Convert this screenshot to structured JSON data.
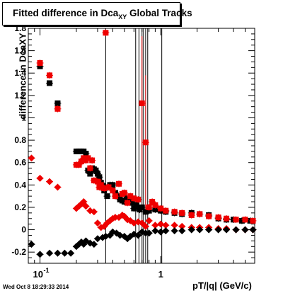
{
  "title": {
    "main": "Fitted difference in Dca",
    "sub": "XY",
    "suffix": "  Global Tracks"
  },
  "footer": {
    "timestamp": "Wed Oct  8 18:29:33 2014"
  },
  "chart_data": {
    "type": "scatter",
    "title": "Fitted difference in DcaXY  Global Tracks",
    "xlabel": "pT/|q| (GeV/c)",
    "ylabel": "difference in DcaXY",
    "xscale": "log",
    "xlim": [
      0.08,
      6.0
    ],
    "ylim": [
      -0.3,
      1.8
    ],
    "x_tick_labels": [
      "10^-1",
      "1"
    ],
    "y_tick_labels": [
      "-0.2",
      "0",
      "0.2",
      "0.4",
      "0.6",
      "0.8",
      "1",
      "1.2",
      "1.4",
      "1.6",
      "1.8"
    ],
    "grid": false,
    "legend": "none",
    "colors": {
      "black": "#000000",
      "red": "#ee0000"
    },
    "series": [
      {
        "marker": "square",
        "color": "#000000",
        "points": [
          [
            0.1,
            1.46
          ],
          [
            0.12,
            1.31
          ],
          [
            0.14,
            1.13
          ],
          [
            0.2,
            0.7
          ],
          [
            0.21,
            0.7
          ],
          [
            0.22,
            0.7
          ],
          [
            0.23,
            0.7
          ],
          [
            0.24,
            0.68
          ],
          [
            0.25,
            0.53
          ],
          [
            0.26,
            0.5
          ],
          [
            0.27,
            0.55
          ],
          [
            0.28,
            0.54
          ],
          [
            0.29,
            0.53
          ],
          [
            0.3,
            0.5
          ],
          [
            0.31,
            0.47
          ],
          [
            0.32,
            0.42
          ],
          [
            0.33,
            0.39
          ],
          [
            0.34,
            0.35
          ],
          [
            0.36,
            0.3
          ],
          [
            0.38,
            0.4
          ],
          [
            0.4,
            0.4
          ],
          [
            0.42,
            0.33
          ],
          [
            0.44,
            0.3
          ],
          [
            0.46,
            0.27
          ],
          [
            0.48,
            0.26
          ],
          [
            0.5,
            0.25
          ],
          [
            0.52,
            0.28
          ],
          [
            0.55,
            0.26
          ],
          [
            0.58,
            0.24
          ],
          [
            0.6,
            0.19
          ],
          [
            0.63,
            0.22
          ],
          [
            0.67,
            0.18
          ],
          [
            0.7,
            0.2
          ],
          [
            0.75,
            0.16
          ],
          [
            0.8,
            0.17
          ],
          [
            0.9,
            0.18
          ],
          [
            1.0,
            0.17
          ],
          [
            1.1,
            0.16
          ],
          [
            1.3,
            0.15
          ],
          [
            1.5,
            0.14
          ],
          [
            1.8,
            0.15
          ],
          [
            2.1,
            0.14
          ],
          [
            2.5,
            0.13
          ],
          [
            3.0,
            0.1
          ],
          [
            3.5,
            0.09
          ],
          [
            4.0,
            0.09
          ],
          [
            4.7,
            0.08
          ],
          [
            5.5,
            0.08
          ]
        ],
        "errors": [
          0.02,
          0.02,
          0.02,
          0.02,
          0.02,
          0.02,
          0.02,
          0.02,
          0.02,
          0.02,
          0.02,
          0.02,
          0.02,
          0.02,
          0.02,
          0.02,
          0.02,
          0.02,
          0.02,
          0.03,
          0.03,
          0.03,
          0.03,
          0.03,
          0.03,
          0.03,
          0.03,
          0.03,
          0.03,
          0.03,
          0.03,
          0.03,
          0.03,
          0.03,
          0.03,
          0.03,
          0.03,
          0.03,
          0.03,
          0.03,
          0.03,
          0.03,
          0.03,
          0.03,
          0.03,
          0.03,
          0.03,
          0.03
        ]
      },
      {
        "marker": "square",
        "color": "#ee0000",
        "points": [
          [
            0.1,
            1.49
          ],
          [
            0.12,
            1.38
          ],
          [
            0.14,
            1.08
          ],
          [
            0.2,
            0.58
          ],
          [
            0.21,
            0.58
          ],
          [
            0.22,
            0.61
          ],
          [
            0.23,
            0.64
          ],
          [
            0.24,
            0.62
          ],
          [
            0.25,
            0.64
          ],
          [
            0.26,
            0.55
          ],
          [
            0.27,
            0.62
          ],
          [
            0.28,
            0.44
          ],
          [
            0.3,
            0.43
          ],
          [
            0.31,
            0.38
          ],
          [
            0.32,
            0.4
          ],
          [
            0.34,
            0.37
          ],
          [
            0.35,
            1.76
          ],
          [
            0.37,
            0.38
          ],
          [
            0.4,
            0.35
          ],
          [
            0.42,
            0.3
          ],
          [
            0.45,
            0.41
          ],
          [
            0.48,
            0.32
          ],
          [
            0.5,
            0.33
          ],
          [
            0.53,
            0.24
          ],
          [
            0.56,
            0.3
          ],
          [
            0.6,
            0.28
          ],
          [
            0.65,
            0.27
          ],
          [
            0.7,
            1.13
          ],
          [
            0.75,
            0.78
          ],
          [
            0.8,
            0.2
          ],
          [
            0.85,
            0.25
          ],
          [
            0.9,
            0.22
          ],
          [
            1.0,
            0.19
          ],
          [
            1.1,
            0.17
          ],
          [
            1.3,
            0.16
          ],
          [
            1.5,
            0.15
          ],
          [
            1.8,
            0.13
          ],
          [
            2.1,
            0.14
          ],
          [
            2.5,
            0.12
          ],
          [
            3.0,
            0.11
          ],
          [
            3.5,
            0.1
          ],
          [
            4.2,
            0.09
          ],
          [
            5.0,
            0.09
          ],
          [
            5.8,
            0.08
          ]
        ],
        "errors": [
          0.03,
          0.03,
          0.03,
          0.03,
          0.03,
          0.03,
          0.03,
          0.03,
          0.03,
          0.03,
          0.03,
          0.03,
          0.03,
          0.03,
          0.05,
          0.03,
          0.03,
          0.03,
          0.03,
          0.03,
          0.03,
          0.03,
          0.03,
          0.03,
          0.03,
          0.03,
          0.03,
          0.6,
          0.6,
          0.03,
          0.03,
          0.03,
          0.03,
          0.03,
          0.03,
          0.03,
          0.03,
          0.03,
          0.03,
          0.03,
          0.03,
          0.03,
          0.03,
          0.03
        ]
      },
      {
        "marker": "diamond",
        "color": "#ee0000",
        "points": [
          [
            0.085,
            0.64
          ],
          [
            0.1,
            0.46
          ],
          [
            0.12,
            0.43
          ],
          [
            0.14,
            0.38
          ],
          [
            0.2,
            0.19
          ],
          [
            0.21,
            0.21
          ],
          [
            0.22,
            0.23
          ],
          [
            0.23,
            0.25
          ],
          [
            0.24,
            0.21
          ],
          [
            0.26,
            0.17
          ],
          [
            0.28,
            0.16
          ],
          [
            0.3,
            0.06
          ],
          [
            0.32,
            0.02
          ],
          [
            0.34,
            0.03
          ],
          [
            0.36,
            0.06
          ],
          [
            0.38,
            0.08
          ],
          [
            0.4,
            0.1
          ],
          [
            0.42,
            0.11
          ],
          [
            0.45,
            0.11
          ],
          [
            0.48,
            0.13
          ],
          [
            0.5,
            0.12
          ],
          [
            0.53,
            0.09
          ],
          [
            0.56,
            0.08
          ],
          [
            0.6,
            0.06
          ],
          [
            0.65,
            0.07
          ],
          [
            0.7,
            0.06
          ],
          [
            0.75,
            0.03
          ],
          [
            0.8,
            0.08
          ],
          [
            0.9,
            0.04
          ],
          [
            1.0,
            0.05
          ],
          [
            1.1,
            0.04
          ],
          [
            1.3,
            0.04
          ],
          [
            1.5,
            0.03
          ],
          [
            1.8,
            0.02
          ],
          [
            2.1,
            0.02
          ],
          [
            2.5,
            0.02
          ],
          [
            3.0,
            0.01
          ],
          [
            3.5,
            0.01
          ],
          [
            4.2,
            0.0
          ],
          [
            5.0,
            0.0
          ],
          [
            5.8,
            0.0
          ]
        ],
        "errors": [
          0.02,
          0.02,
          0.02,
          0.02,
          0.02,
          0.02,
          0.02,
          0.02,
          0.02,
          0.02,
          0.02,
          0.02,
          0.02,
          0.02,
          0.02,
          0.02,
          0.02,
          0.02,
          0.02,
          0.02,
          0.02,
          0.02,
          0.02,
          0.02,
          0.02,
          0.02,
          0.02,
          0.02,
          0.02,
          0.02,
          0.02,
          0.02,
          0.02,
          0.02,
          0.02,
          0.02,
          0.02,
          0.02,
          0.02,
          0.02,
          0.02
        ]
      },
      {
        "marker": "diamond",
        "color": "#000000",
        "points": [
          [
            0.085,
            -0.13
          ],
          [
            0.1,
            -0.22
          ],
          [
            0.12,
            -0.21
          ],
          [
            0.14,
            -0.21
          ],
          [
            0.16,
            -0.21
          ],
          [
            0.18,
            -0.21
          ],
          [
            0.2,
            -0.15
          ],
          [
            0.21,
            -0.13
          ],
          [
            0.22,
            -0.11
          ],
          [
            0.23,
            -0.13
          ],
          [
            0.24,
            -0.1
          ],
          [
            0.26,
            -0.12
          ],
          [
            0.28,
            -0.13
          ],
          [
            0.3,
            -0.08
          ],
          [
            0.33,
            -0.07
          ],
          [
            0.35,
            -0.06
          ],
          [
            0.38,
            -0.05
          ],
          [
            0.4,
            -0.02
          ],
          [
            0.43,
            -0.03
          ],
          [
            0.46,
            -0.05
          ],
          [
            0.5,
            -0.06
          ],
          [
            0.53,
            -0.08
          ],
          [
            0.56,
            -0.06
          ],
          [
            0.6,
            -0.04
          ],
          [
            0.65,
            -0.05
          ],
          [
            0.7,
            -0.02
          ],
          [
            0.75,
            -0.03
          ],
          [
            0.8,
            -0.03
          ],
          [
            0.9,
            -0.01
          ],
          [
            1.0,
            -0.02
          ],
          [
            1.1,
            -0.01
          ],
          [
            1.3,
            -0.01
          ],
          [
            1.5,
            -0.01
          ],
          [
            1.8,
            0.0
          ],
          [
            2.1,
            0.0
          ],
          [
            2.5,
            0.0
          ],
          [
            3.0,
            0.0
          ],
          [
            3.5,
            0.0
          ],
          [
            4.2,
            0.0
          ],
          [
            5.0,
            0.0
          ],
          [
            5.8,
            0.0
          ]
        ],
        "errors": [
          0.02,
          0.02,
          0.02,
          0.02,
          0.02,
          0.02,
          0.02,
          0.02,
          0.02,
          0.02,
          0.02,
          0.02,
          0.02,
          0.02,
          0.02,
          0.02,
          0.02,
          0.02,
          0.02,
          0.02,
          0.02,
          0.02,
          0.02,
          0.02,
          0.02,
          0.02,
          0.02,
          0.02,
          0.02,
          0.02,
          0.02,
          0.02,
          0.02,
          0.02,
          0.02,
          0.02,
          0.02,
          0.02,
          0.02,
          0.02,
          0.02
        ]
      }
    ],
    "tall_error_bars_x": [
      0.35,
      0.62,
      0.66,
      0.7,
      0.72,
      0.75,
      0.78,
      1.02
    ]
  }
}
